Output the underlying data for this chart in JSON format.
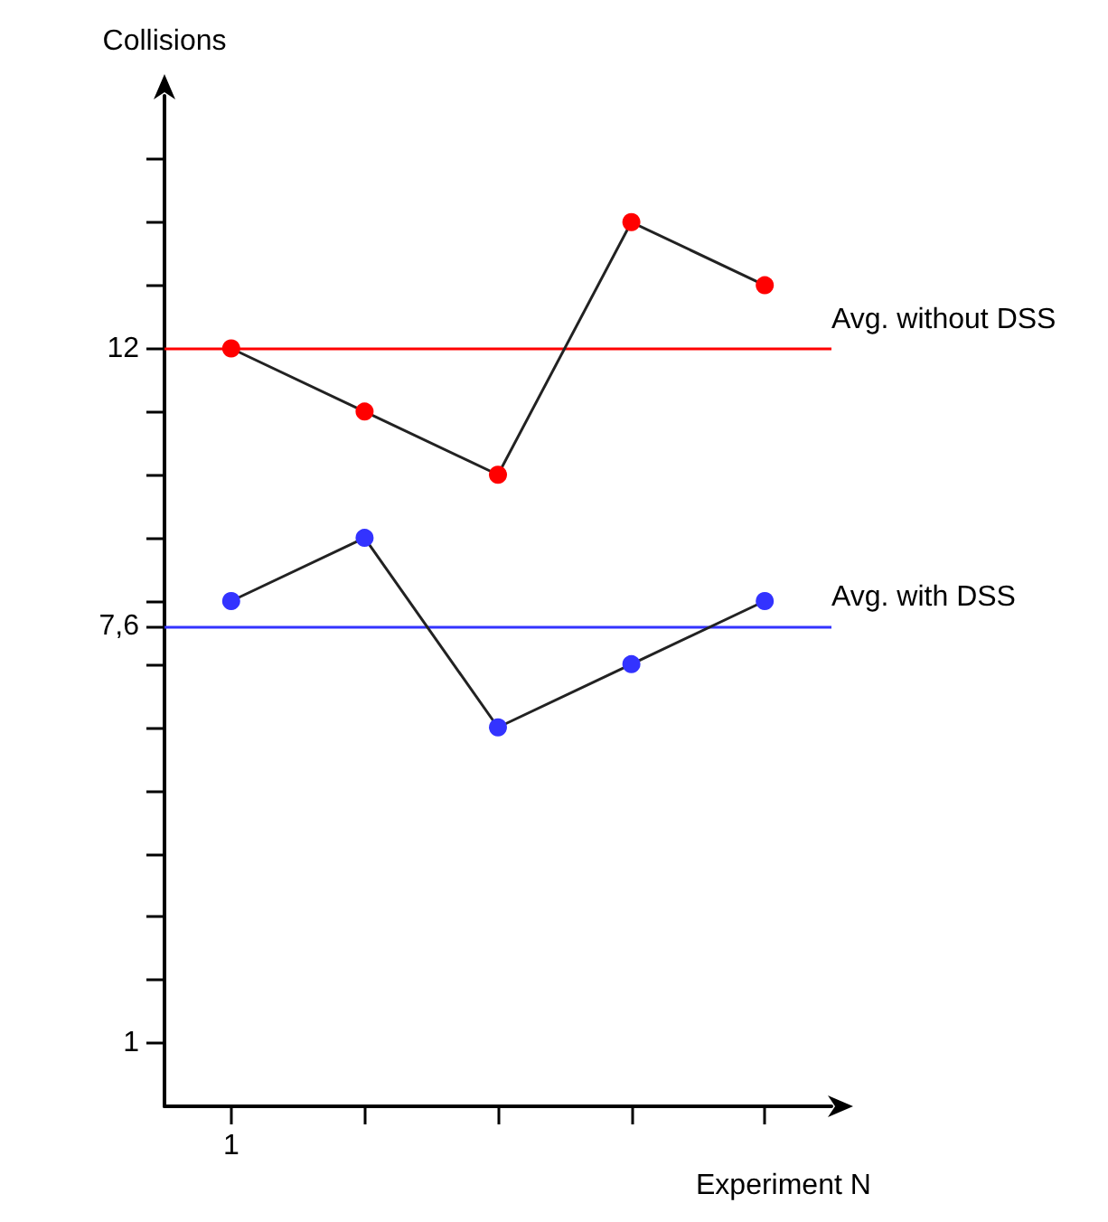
{
  "chart_data": {
    "type": "line",
    "xlabel": "Experiment N",
    "ylabel": "Collisions",
    "categories": [
      "1",
      null,
      null,
      null,
      null
    ],
    "series": [
      {
        "color": "#ff0000",
        "values": [
          12,
          11,
          10,
          14,
          13
        ]
      },
      {
        "color": "#3333ff",
        "values": [
          8,
          9,
          6,
          7,
          8
        ]
      }
    ],
    "ylim": [
      0,
      16
    ],
    "yticks": [
      {
        "value": 1,
        "label": "1"
      },
      {
        "value": 2,
        "label": null
      },
      {
        "value": 3,
        "label": null
      },
      {
        "value": 4,
        "label": null
      },
      {
        "value": 5,
        "label": null
      },
      {
        "value": 6,
        "label": null
      },
      {
        "value": 7,
        "label": null
      },
      {
        "value": 7.6,
        "label": "7,6"
      },
      {
        "value": 8,
        "label": null
      },
      {
        "value": 9,
        "label": null
      },
      {
        "value": 10,
        "label": null
      },
      {
        "value": 11,
        "label": null
      },
      {
        "value": 12,
        "label": "12"
      },
      {
        "value": 13,
        "label": null
      },
      {
        "value": 14,
        "label": null
      },
      {
        "value": 15,
        "label": null
      }
    ],
    "ref_lines": [
      {
        "axis": "y",
        "value": 12,
        "label": "Avg. without DSS",
        "color": "#ff0000"
      },
      {
        "axis": "y",
        "value": 7.6,
        "label": "Avg. with DSS",
        "color": "#3333ff"
      }
    ],
    "marker": "circle",
    "grid": false
  }
}
